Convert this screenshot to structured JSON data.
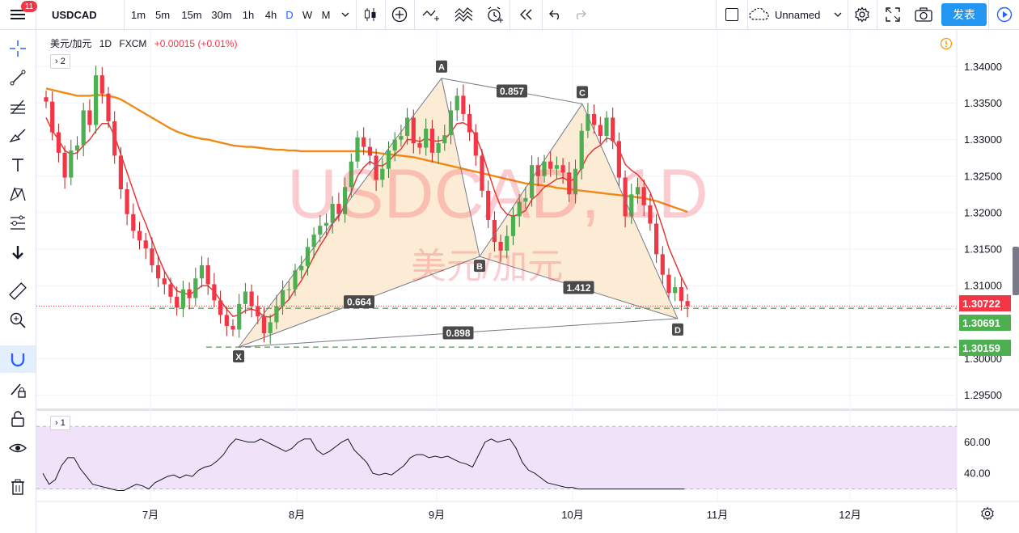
{
  "topbar": {
    "badge": "11",
    "symbol": "USDCAD",
    "timeframes": [
      "1m",
      "5m",
      "15m",
      "30m",
      "1h",
      "4h",
      "D",
      "W",
      "M"
    ],
    "active_timeframe": "D",
    "layout_name": "Unnamed",
    "publish_label": "发表"
  },
  "legend": {
    "name": "美元/加元",
    "interval": "1D",
    "source": "FXCM",
    "change": "+0.00015 (+0.01%)",
    "collapse_main": "2",
    "collapse_rsi": "1"
  },
  "watermark": {
    "main": "USDCAD, 1D",
    "sub": "美元/加元"
  },
  "colors": {
    "up": "#4caf50",
    "up_dark": "#2e7d32",
    "down": "#f23645",
    "ma_fast": "#e53935",
    "ma_slow": "#ef8a17",
    "pattern_fill": "#fbe6c8",
    "rsi_band": "#f0e3f9",
    "accent": "#2962ff"
  },
  "chart_data": {
    "type": "candlestick",
    "price_axis": [
      "1.34000",
      "1.33500",
      "1.33000",
      "1.32500",
      "1.32000",
      "1.31500",
      "1.31000",
      "1.30000",
      "1.29500"
    ],
    "ylim": [
      1.2932,
      1.3449
    ],
    "time_axis": [
      "7月",
      "8月",
      "9月",
      "10月",
      "11月",
      "12月"
    ],
    "last_price": "1.30722",
    "level_1": "1.30691",
    "level_2": "1.30159",
    "pattern": {
      "points": [
        {
          "label": "X",
          "price": 1.3016
        },
        {
          "label": "A",
          "price": 1.3384
        },
        {
          "label": "B",
          "price": 1.314
        },
        {
          "label": "C",
          "price": 1.3349
        },
        {
          "label": "D",
          "price": 1.3055
        }
      ],
      "ratios": {
        "XB": "0.664",
        "AC": "0.857",
        "BD": "1.412",
        "XD": "0.898"
      }
    },
    "candles_close": [
      1.3352,
      1.331,
      1.3282,
      1.3248,
      1.3285,
      1.3292,
      1.334,
      1.332,
      1.3388,
      1.3363,
      1.3325,
      1.3278,
      1.3232,
      1.3198,
      1.3175,
      1.3162,
      1.3151,
      1.3128,
      1.311,
      1.3102,
      1.3085,
      1.307,
      1.3095,
      1.3083,
      1.311,
      1.3128,
      1.3102,
      1.308,
      1.306,
      1.3045,
      1.304,
      1.3075,
      1.3092,
      1.3072,
      1.3058,
      1.3035,
      1.305,
      1.3072,
      1.3094,
      1.3095,
      1.3121,
      1.3127,
      1.3153,
      1.317,
      1.3182,
      1.3186,
      1.3212,
      1.3198,
      1.3235,
      1.327,
      1.3303,
      1.329,
      1.3278,
      1.3245,
      1.326,
      1.3285,
      1.33,
      1.3305,
      1.333,
      1.3295,
      1.3289,
      1.3315,
      1.3282,
      1.3295,
      1.3306,
      1.334,
      1.336,
      1.3335,
      1.331,
      1.3278,
      1.323,
      1.319,
      1.316,
      1.3148,
      1.3168,
      1.3195,
      1.3215,
      1.322,
      1.3265,
      1.325,
      1.327,
      1.326,
      1.3265,
      1.3255,
      1.3225,
      1.326,
      1.3312,
      1.3335,
      1.332,
      1.3305,
      1.333,
      1.3298,
      1.3248,
      1.3195,
      1.3225,
      1.3235,
      1.321,
      1.3185,
      1.3143,
      1.3115,
      1.309,
      1.3098,
      1.3079,
      1.3072
    ],
    "ma_fast": [
      1.333,
      1.3312,
      1.33,
      1.3285,
      1.328,
      1.3282,
      1.3292,
      1.33,
      1.3312,
      1.3322,
      1.3322,
      1.3305,
      1.328,
      1.3255,
      1.323,
      1.3205,
      1.3185,
      1.3162,
      1.314,
      1.312,
      1.3105,
      1.3093,
      1.309,
      1.3088,
      1.3093,
      1.31,
      1.31,
      1.3092,
      1.308,
      1.3068,
      1.3058,
      1.306,
      1.3066,
      1.3068,
      1.3065,
      1.3058,
      1.3057,
      1.3063,
      1.3073,
      1.3081,
      1.3095,
      1.3107,
      1.3123,
      1.314,
      1.3155,
      1.3168,
      1.3185,
      1.3195,
      1.321,
      1.3228,
      1.325,
      1.3262,
      1.327,
      1.3265,
      1.3264,
      1.327,
      1.328,
      1.3287,
      1.33,
      1.33,
      1.3297,
      1.3302,
      1.3298,
      1.3298,
      1.33,
      1.331,
      1.3322,
      1.3323,
      1.3318,
      1.3305,
      1.3283,
      1.3256,
      1.323,
      1.3208,
      1.3198,
      1.3195,
      1.3198,
      1.3203,
      1.3218,
      1.3225,
      1.3235,
      1.324,
      1.3246,
      1.3248,
      1.3243,
      1.3247,
      1.3262,
      1.3278,
      1.3287,
      1.3292,
      1.3302,
      1.33,
      1.3287,
      1.3266,
      1.3258,
      1.3252,
      1.3242,
      1.3228,
      1.3205,
      1.318,
      1.3152,
      1.3132,
      1.3112,
      1.3095
    ],
    "ma_slow": [
      1.337,
      1.3368,
      1.3366,
      1.3364,
      1.3362,
      1.336,
      1.336,
      1.336,
      1.3361,
      1.3361,
      1.336,
      1.3358,
      1.3355,
      1.335,
      1.3345,
      1.334,
      1.3335,
      1.333,
      1.3325,
      1.332,
      1.3315,
      1.3311,
      1.3308,
      1.3305,
      1.3303,
      1.3301,
      1.33,
      1.3298,
      1.3296,
      1.3294,
      1.3292,
      1.3291,
      1.329,
      1.329,
      1.3289,
      1.3288,
      1.3287,
      1.3286,
      1.3286,
      1.3285,
      1.3285,
      1.3284,
      1.3284,
      1.3284,
      1.3284,
      1.3284,
      1.3284,
      1.3284,
      1.3284,
      1.3284,
      1.3284,
      1.3284,
      1.3283,
      1.3282,
      1.3281,
      1.328,
      1.3279,
      1.3278,
      1.3277,
      1.3276,
      1.3274,
      1.3272,
      1.327,
      1.3268,
      1.3266,
      1.3264,
      1.3262,
      1.326,
      1.3258,
      1.3256,
      1.3254,
      1.3252,
      1.325,
      1.3248,
      1.3246,
      1.3244,
      1.3242,
      1.324,
      1.3239,
      1.3238,
      1.3237,
      1.3236,
      1.3234,
      1.3233,
      1.3232,
      1.3231,
      1.323,
      1.3229,
      1.3228,
      1.3227,
      1.3226,
      1.3225,
      1.3224,
      1.3223,
      1.3222,
      1.3221,
      1.322,
      1.3218,
      1.3216,
      1.3213,
      1.321,
      1.3207,
      1.3204,
      1.3201
    ],
    "rsi": {
      "axis": [
        "60.00",
        "40.00"
      ],
      "ylim": [
        22,
        80
      ],
      "values": [
        40,
        33,
        36,
        45,
        50,
        50,
        43,
        38,
        33,
        32,
        31,
        30,
        29,
        29,
        31,
        33,
        32,
        30,
        34,
        36,
        38,
        39,
        37,
        39,
        38,
        42,
        44,
        45,
        48,
        52,
        58,
        62,
        61,
        60,
        60,
        62,
        60,
        58,
        56,
        54,
        56,
        60,
        62,
        62,
        55,
        52,
        54,
        57,
        60,
        62,
        55,
        51,
        47,
        40,
        39,
        40,
        39,
        42,
        45,
        50,
        52,
        52,
        50,
        51,
        50,
        51,
        49,
        47,
        46,
        44,
        52,
        60,
        62,
        60,
        61,
        62,
        56,
        47,
        42,
        40,
        37,
        34,
        33,
        32,
        31,
        31,
        30,
        30,
        30,
        30,
        30,
        30,
        30,
        30,
        30,
        30,
        30,
        30,
        30,
        30,
        30,
        30,
        30,
        30
      ]
    }
  }
}
